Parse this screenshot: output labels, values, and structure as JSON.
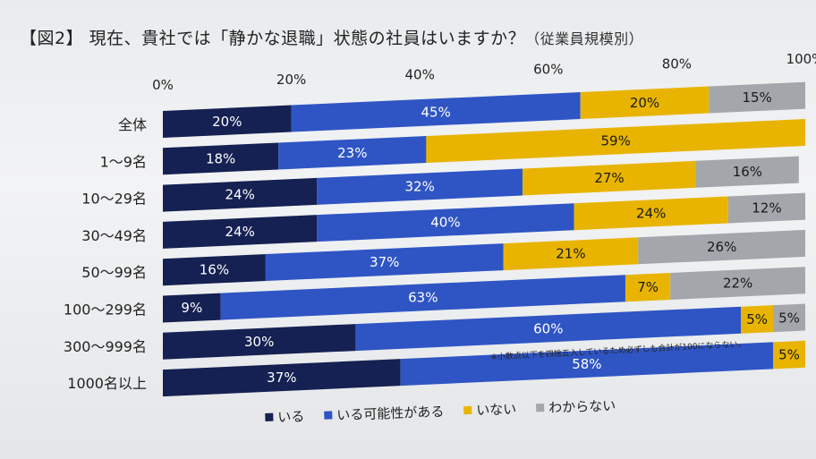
{
  "title": {
    "main": "【図2】 現在、貴社では「静かな退職」状態の社員はいますか？",
    "sub": "（従業員規模別）"
  },
  "note": "※小数点以下を四捨五入しているため必ずしも合計が100にならない。",
  "colors": {
    "iru": "#152152",
    "kanousei": "#2f55c4",
    "inai": "#e8b400",
    "wakaranai": "#a3a6ab"
  },
  "chart_data": {
    "type": "bar",
    "orientation": "horizontal",
    "stacked": true,
    "xlim": [
      0,
      100
    ],
    "x_ticks": [
      "0%",
      "20%",
      "40%",
      "60%",
      "80%",
      "100%"
    ],
    "categories": [
      "全体",
      "1～9名",
      "10～29名",
      "30～49名",
      "50～99名",
      "100～299名",
      "300～999名",
      "1000名以上"
    ],
    "series": [
      {
        "name": "いる",
        "values": [
          20,
          18,
          24,
          24,
          16,
          9,
          30,
          37
        ],
        "labels": [
          "20%",
          "18%",
          "24%",
          "24%",
          "16%",
          "9%",
          "30%",
          "37%"
        ]
      },
      {
        "name": "いる可能性がある",
        "values": [
          45,
          23,
          32,
          40,
          37,
          63,
          60,
          58
        ],
        "labels": [
          "45%",
          "23%",
          "32%",
          "40%",
          "37%",
          "63%",
          "60%",
          "58%"
        ]
      },
      {
        "name": "いない",
        "values": [
          20,
          59,
          27,
          24,
          21,
          7,
          5,
          5
        ],
        "labels": [
          "20%",
          "59%",
          "27%",
          "24%",
          "21%",
          "7%",
          "5%",
          "5%"
        ]
      },
      {
        "name": "わからない",
        "values": [
          15,
          0,
          16,
          12,
          26,
          22,
          5,
          0
        ],
        "labels": [
          "15%",
          "",
          "16%",
          "12%",
          "26%",
          "22%",
          "5%",
          ""
        ]
      }
    ],
    "legend_position": "bottom",
    "grid": false
  }
}
